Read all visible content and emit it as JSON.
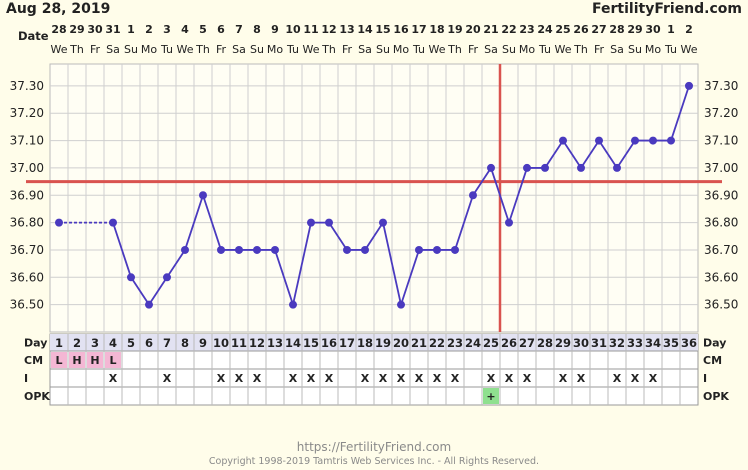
{
  "header": {
    "date_title": "Aug 28, 2019",
    "brand": "FertilityFriend.com"
  },
  "footer": {
    "url": "https://FertilityFriend.com",
    "copyright": "Copyright 1998-2019 Tamtris Web Services Inc. - All Rights Reserved."
  },
  "colors": {
    "background": "#fffdea",
    "line": "#4a3abf",
    "coverline": "#d9534f",
    "cm_cell": "#f4b7d4",
    "opk_positive": "#8fe08f",
    "grid": "#cfcfcf"
  },
  "chart_data": {
    "type": "line",
    "row_labels": {
      "date": "Date",
      "day": "Day",
      "cm": "CM",
      "intercourse": "I",
      "opk": "OPK"
    },
    "dates": [
      "28",
      "29",
      "30",
      "31",
      "1",
      "2",
      "3",
      "4",
      "5",
      "6",
      "7",
      "8",
      "9",
      "10",
      "11",
      "12",
      "13",
      "14",
      "15",
      "16",
      "17",
      "18",
      "19",
      "20",
      "21",
      "22",
      "23",
      "24",
      "25",
      "26",
      "27",
      "28",
      "29",
      "30",
      "1",
      "2"
    ],
    "weekdays": [
      "We",
      "Th",
      "Fr",
      "Sa",
      "Su",
      "Mo",
      "Tu",
      "We",
      "Th",
      "Fr",
      "Sa",
      "Su",
      "Mo",
      "Tu",
      "We",
      "Th",
      "Fr",
      "Sa",
      "Su",
      "Mo",
      "Tu",
      "We",
      "Th",
      "Fr",
      "Sa",
      "Su",
      "Mo",
      "Tu",
      "We",
      "Th",
      "Fr",
      "Sa",
      "Su",
      "Mo",
      "Tu",
      "We"
    ],
    "days": [
      1,
      2,
      3,
      4,
      5,
      6,
      7,
      8,
      9,
      10,
      11,
      12,
      13,
      14,
      15,
      16,
      17,
      18,
      19,
      20,
      21,
      22,
      23,
      24,
      25,
      26,
      27,
      28,
      29,
      30,
      31,
      32,
      33,
      34,
      35,
      36
    ],
    "temperatures": [
      [
        1,
        36.8
      ],
      [
        4,
        36.8
      ],
      [
        5,
        36.6
      ],
      [
        6,
        36.5
      ],
      [
        7,
        36.6
      ],
      [
        8,
        36.7
      ],
      [
        9,
        36.9
      ],
      [
        10,
        36.7
      ],
      [
        11,
        36.7
      ],
      [
        12,
        36.7
      ],
      [
        13,
        36.7
      ],
      [
        14,
        36.5
      ],
      [
        15,
        36.8
      ],
      [
        16,
        36.8
      ],
      [
        17,
        36.7
      ],
      [
        18,
        36.7
      ],
      [
        19,
        36.8
      ],
      [
        20,
        36.5
      ],
      [
        21,
        36.7
      ],
      [
        22,
        36.7
      ],
      [
        23,
        36.7
      ],
      [
        24,
        36.9
      ],
      [
        25,
        37.0
      ],
      [
        26,
        36.8
      ],
      [
        27,
        37.0
      ],
      [
        28,
        37.0
      ],
      [
        29,
        37.1
      ],
      [
        30,
        37.0
      ],
      [
        31,
        37.1
      ],
      [
        32,
        37.0
      ],
      [
        33,
        37.1
      ],
      [
        34,
        37.1
      ],
      [
        35,
        37.1
      ],
      [
        36,
        37.3
      ]
    ],
    "dashed_segments": [
      [
        1,
        4
      ]
    ],
    "yticks": [
      "36.50",
      "36.60",
      "36.70",
      "36.80",
      "36.90",
      "37.00",
      "37.10",
      "37.20",
      "37.30"
    ],
    "ylim": [
      36.4,
      37.38
    ],
    "coverline": 36.95,
    "ovulation_day": 26,
    "cervical_mucus": {
      "1": "L",
      "2": "H",
      "3": "H",
      "4": "L"
    },
    "intercourse_days": [
      4,
      7,
      10,
      11,
      12,
      14,
      15,
      16,
      18,
      19,
      20,
      21,
      22,
      23,
      25,
      26,
      27,
      29,
      30,
      32,
      33,
      34
    ],
    "intercourse_mark": "X",
    "opk": {
      "25": "+"
    }
  }
}
